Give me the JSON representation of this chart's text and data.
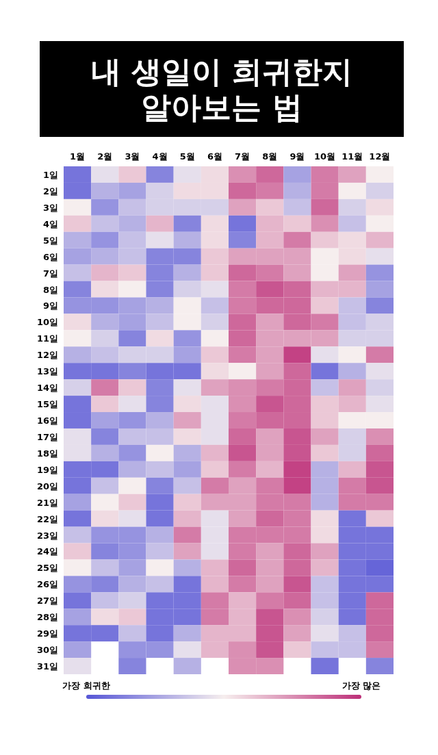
{
  "chart_data": {
    "type": "heatmap",
    "title": "내 생일이 희귀한지\n알아보는 법",
    "categories": [
      "1월",
      "2월",
      "3월",
      "4월",
      "5월",
      "6월",
      "7월",
      "8월",
      "9월",
      "10월",
      "11월",
      "12월"
    ],
    "y_categories": [
      "1일",
      "2일",
      "3일",
      "4일",
      "5일",
      "6일",
      "7일",
      "8일",
      "9일",
      "10일",
      "11일",
      "12일",
      "13일",
      "14일",
      "15일",
      "16일",
      "17일",
      "18일",
      "19일",
      "20일",
      "21일",
      "22일",
      "23일",
      "24일",
      "25일",
      "26일",
      "27일",
      "28일",
      "29일",
      "30일",
      "31일"
    ],
    "cells": [
      [
        0.1,
        0.45,
        0.6,
        0.15,
        0.45,
        0.55,
        0.75,
        0.85,
        0.25,
        0.8,
        0.7,
        0.5
      ],
      [
        0.1,
        0.3,
        0.25,
        0.4,
        0.55,
        0.55,
        0.85,
        0.8,
        0.3,
        0.8,
        0.5,
        0.4
      ],
      [
        0.5,
        0.2,
        0.35,
        0.4,
        0.4,
        0.4,
        0.7,
        0.6,
        0.35,
        0.85,
        0.4,
        0.55
      ],
      [
        0.6,
        0.35,
        0.3,
        0.65,
        0.15,
        0.55,
        0.1,
        0.65,
        0.6,
        0.75,
        0.35,
        0.5
      ],
      [
        0.3,
        0.2,
        0.35,
        0.45,
        0.3,
        0.55,
        0.15,
        0.65,
        0.8,
        0.6,
        0.55,
        0.65
      ],
      [
        0.25,
        0.3,
        0.35,
        0.15,
        0.15,
        0.6,
        0.7,
        0.7,
        0.7,
        0.5,
        0.55,
        0.45
      ],
      [
        0.35,
        0.65,
        0.6,
        0.15,
        0.3,
        0.6,
        0.85,
        0.8,
        0.7,
        0.5,
        0.7,
        0.2
      ],
      [
        0.15,
        0.55,
        0.5,
        0.15,
        0.4,
        0.45,
        0.8,
        0.9,
        0.85,
        0.65,
        0.65,
        0.25
      ],
      [
        0.2,
        0.2,
        0.25,
        0.3,
        0.5,
        0.35,
        0.8,
        0.85,
        0.85,
        0.6,
        0.35,
        0.15
      ],
      [
        0.55,
        0.3,
        0.25,
        0.35,
        0.5,
        0.4,
        0.85,
        0.7,
        0.85,
        0.8,
        0.35,
        0.4
      ],
      [
        0.5,
        0.4,
        0.15,
        0.55,
        0.2,
        0.5,
        0.85,
        0.7,
        0.7,
        0.7,
        0.4,
        0.4
      ],
      [
        0.3,
        0.35,
        0.4,
        0.4,
        0.25,
        0.6,
        0.8,
        0.7,
        0.95,
        0.45,
        0.5,
        0.8
      ],
      [
        0.1,
        0.1,
        0.15,
        0.1,
        0.1,
        0.55,
        0.5,
        0.7,
        0.85,
        0.1,
        0.3,
        0.45
      ],
      [
        0.4,
        0.8,
        0.6,
        0.15,
        0.45,
        0.7,
        0.75,
        0.8,
        0.85,
        0.35,
        0.7,
        0.4
      ],
      [
        0.1,
        0.6,
        0.45,
        0.15,
        0.55,
        0.45,
        0.75,
        0.9,
        0.85,
        0.6,
        0.65,
        0.45
      ],
      [
        0.1,
        0.25,
        0.2,
        0.3,
        0.7,
        0.45,
        0.8,
        0.85,
        0.85,
        0.6,
        0.5,
        0.5
      ],
      [
        0.45,
        0.15,
        0.35,
        0.35,
        0.55,
        0.45,
        0.85,
        0.7,
        0.9,
        0.7,
        0.4,
        0.75
      ],
      [
        0.45,
        0.3,
        0.2,
        0.5,
        0.3,
        0.65,
        0.9,
        0.7,
        0.9,
        0.6,
        0.4,
        0.85
      ],
      [
        0.1,
        0.1,
        0.3,
        0.35,
        0.25,
        0.6,
        0.8,
        0.65,
        0.95,
        0.3,
        0.65,
        0.9
      ],
      [
        0.1,
        0.35,
        0.5,
        0.15,
        0.35,
        0.8,
        0.7,
        0.8,
        0.95,
        0.3,
        0.8,
        0.9
      ],
      [
        0.25,
        0.5,
        0.6,
        0.1,
        0.6,
        0.7,
        0.7,
        0.8,
        0.8,
        0.3,
        0.8,
        0.8
      ],
      [
        0.1,
        0.55,
        0.45,
        0.1,
        0.65,
        0.45,
        0.7,
        0.85,
        0.8,
        0.55,
        0.1,
        0.6
      ],
      [
        0.35,
        0.2,
        0.2,
        0.3,
        0.8,
        0.45,
        0.8,
        0.8,
        0.8,
        0.55,
        0.1,
        0.1
      ],
      [
        0.6,
        0.15,
        0.2,
        0.35,
        0.7,
        0.45,
        0.8,
        0.7,
        0.85,
        0.7,
        0.1,
        0.1
      ],
      [
        0.5,
        0.35,
        0.25,
        0.5,
        0.3,
        0.65,
        0.85,
        0.7,
        0.85,
        0.65,
        0.1,
        0.05
      ],
      [
        0.2,
        0.15,
        0.3,
        0.35,
        0.1,
        0.65,
        0.8,
        0.7,
        0.9,
        0.35,
        0.1,
        0.1
      ],
      [
        0.1,
        0.35,
        0.4,
        0.1,
        0.1,
        0.8,
        0.65,
        0.8,
        0.85,
        0.35,
        0.1,
        0.85
      ],
      [
        0.25,
        0.55,
        0.6,
        0.1,
        0.1,
        0.8,
        0.65,
        0.9,
        0.75,
        0.4,
        0.1,
        0.85
      ],
      [
        0.1,
        0.1,
        0.35,
        0.1,
        0.3,
        0.65,
        0.65,
        0.9,
        0.7,
        0.45,
        0.35,
        0.85
      ],
      [
        0.25,
        null,
        0.2,
        0.2,
        0.45,
        0.65,
        0.75,
        0.9,
        0.6,
        0.35,
        0.35,
        0.8
      ],
      [
        0.45,
        null,
        0.15,
        null,
        0.3,
        null,
        0.75,
        0.75,
        null,
        0.1,
        null,
        0.15
      ]
    ],
    "clim": [
      0,
      1
    ],
    "cticks": [
      {
        "value": 0,
        "label": "가장 희귀한"
      },
      {
        "value": 1,
        "label": "가장 많은"
      }
    ]
  }
}
